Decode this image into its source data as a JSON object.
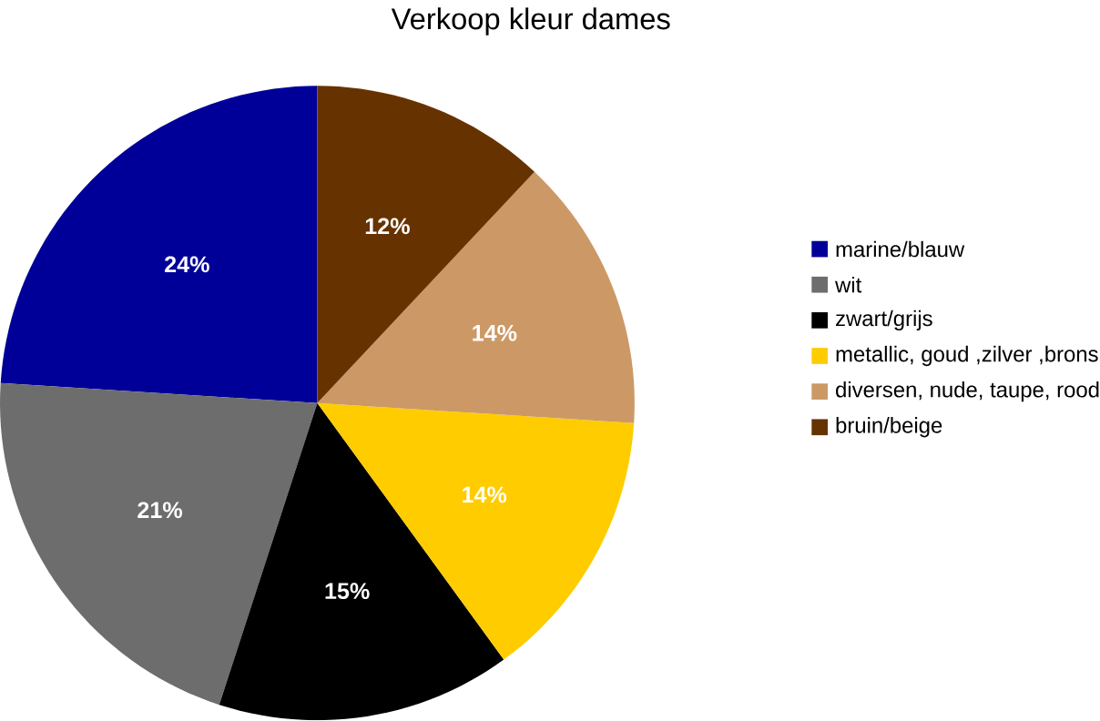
{
  "chart_data": {
    "type": "pie",
    "title": "Verkoop kleur dames",
    "categories": [
      "marine/blauw",
      "wit",
      "zwart/grijs",
      "metallic, goud ,zilver ,brons",
      "diversen, nude, taupe, rood",
      "bruin/beige"
    ],
    "values": [
      24,
      21,
      15,
      14,
      14,
      12
    ],
    "colors": [
      "#000099",
      "#6d6d6d",
      "#000000",
      "#ffcc00",
      "#cc9966",
      "#663300"
    ],
    "value_labels": [
      "24%",
      "21%",
      "15%",
      "14%",
      "14%",
      "12%"
    ],
    "legend": "right"
  }
}
